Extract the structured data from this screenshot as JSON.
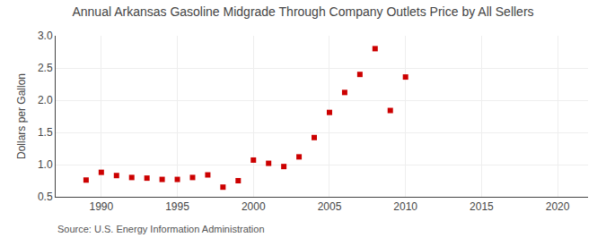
{
  "chart_data": {
    "type": "scatter",
    "title": "Annual Arkansas Gasoline Midgrade Through Company Outlets Price by All Sellers",
    "ylabel": "Dollars per Gallon",
    "annotations": [
      "Source: U.S. Energy Information Administration"
    ],
    "x": [
      1989,
      1990,
      1991,
      1992,
      1993,
      1994,
      1995,
      1996,
      1997,
      1998,
      1999,
      2000,
      2001,
      2002,
      2003,
      2004,
      2005,
      2006,
      2007,
      2008,
      2009,
      2010
    ],
    "values": [
      0.76,
      0.88,
      0.83,
      0.8,
      0.79,
      0.77,
      0.77,
      0.8,
      0.84,
      0.65,
      0.75,
      1.07,
      1.02,
      0.97,
      1.12,
      1.42,
      1.81,
      2.12,
      2.4,
      2.8,
      1.84,
      2.36
    ],
    "color": "#cc0000",
    "marker": "square",
    "xlim": [
      1987,
      2022
    ],
    "ylim": [
      0.5,
      3.0
    ],
    "xticks": [
      1990,
      1995,
      2000,
      2005,
      2010,
      2015,
      2020
    ],
    "yticks": [
      0.5,
      {
        "value": 1.0,
        "label": "1.0"
      },
      1.5,
      {
        "value": 2.0,
        "label": "2.0"
      },
      2.5,
      {
        "value": 3.0,
        "label": "3.0"
      }
    ],
    "grid": true
  }
}
